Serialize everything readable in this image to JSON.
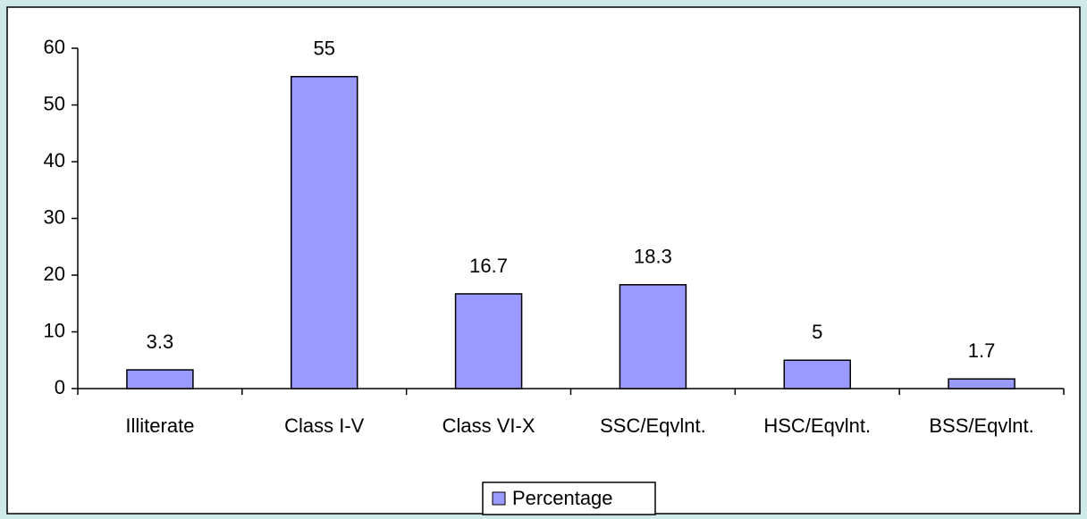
{
  "chart_data": {
    "type": "bar",
    "categories": [
      "Illiterate",
      "Class I-V",
      "Class VI-X",
      "SSC/Eqvlnt.",
      "HSC/Eqvlnt.",
      "BSS/Eqvlnt."
    ],
    "series": [
      {
        "name": "Percentage",
        "color": "#9999ff",
        "values": [
          3.3,
          55,
          16.7,
          18.3,
          5,
          1.7
        ]
      }
    ],
    "ylim": [
      0,
      60
    ],
    "yticks": [
      0,
      10,
      20,
      30,
      40,
      50,
      60
    ],
    "grid": false,
    "legend": "bottom"
  }
}
